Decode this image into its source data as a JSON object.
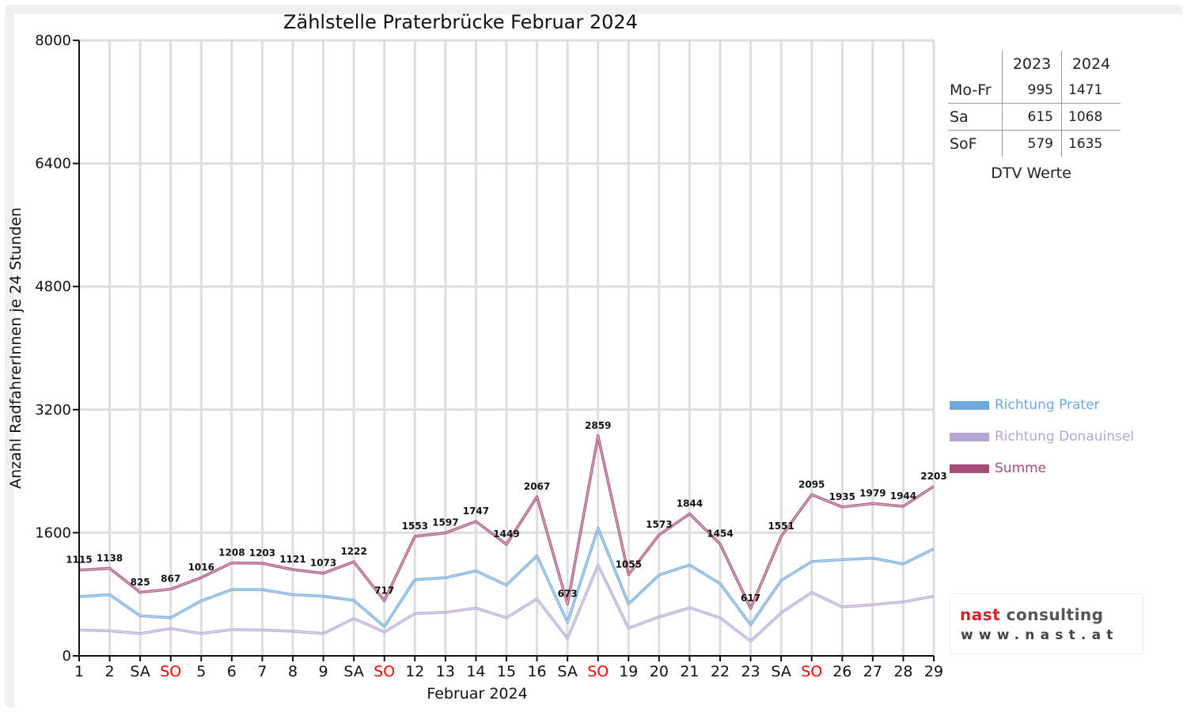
{
  "chart_data": {
    "type": "line",
    "title": "Zählstelle Praterbrücke Februar 2024",
    "xlabel": "Februar 2024",
    "ylabel": "Anzahl RadfahrerInnen je 24 Stunden",
    "ylim": [
      0,
      8000
    ],
    "yticks": [
      "0",
      "1600",
      "3200",
      "4800",
      "6400",
      "8000"
    ],
    "grid": true,
    "legend_position": "right",
    "categories": [
      "1",
      "2",
      "SA",
      "SO",
      "5",
      "6",
      "7",
      "8",
      "9",
      "SA",
      "SO",
      "12",
      "13",
      "14",
      "15",
      "16",
      "SA",
      "SO",
      "19",
      "20",
      "21",
      "22",
      "23",
      "SA",
      "SO",
      "26",
      "27",
      "28",
      "29"
    ],
    "sunday_color": "#ff0000",
    "series": [
      {
        "name": "Richtung Prater",
        "color": "#6fa8dc",
        "values": [
          770,
          795,
          520,
          495,
          715,
          860,
          860,
          795,
          775,
          720,
          380,
          990,
          1015,
          1105,
          920,
          1300,
          435,
          1660,
          675,
          1050,
          1180,
          940,
          405,
          980,
          1225,
          1250,
          1270,
          1195,
          1390
        ]
      },
      {
        "name": "Richtung Donauinsel",
        "color": "#b4a7d6",
        "values": [
          335,
          325,
          290,
          355,
          290,
          340,
          335,
          320,
          290,
          485,
          310,
          550,
          565,
          620,
          495,
          740,
          225,
          1180,
          360,
          505,
          625,
          495,
          190,
          560,
          825,
          635,
          665,
          700,
          775
        ]
      },
      {
        "name": "Summe",
        "color": "#a64d79",
        "values": [
          1115,
          1138,
          825,
          867,
          1016,
          1208,
          1203,
          1121,
          1073,
          1222,
          717,
          1553,
          1597,
          1747,
          1449,
          2067,
          673,
          2859,
          1055,
          1573,
          1844,
          1454,
          617,
          1551,
          2095,
          1935,
          1979,
          1944,
          2203
        ],
        "labels": [
          "1115",
          "1138",
          "825",
          "867",
          "1016",
          "1208",
          "1203",
          "1121",
          "1073",
          "1222",
          "717",
          "1553",
          "1597",
          "1747",
          "1449",
          "2067",
          "673",
          "2859",
          "1055",
          "1573",
          "1844",
          "1454",
          "617",
          "1551",
          "2095",
          "1935",
          "1979",
          "1944",
          "2203"
        ]
      }
    ]
  },
  "dtv_table": {
    "header": [
      "",
      "2023",
      "2024"
    ],
    "rows": [
      {
        "label": "Mo-Fr",
        "v2023": "995",
        "v2024": "1471"
      },
      {
        "label": "Sa",
        "v2023": "615",
        "v2024": "1068"
      },
      {
        "label": "SoF",
        "v2023": "579",
        "v2024": "1635"
      }
    ],
    "caption": "DTV Werte"
  },
  "logo": {
    "name_part1": "nast",
    "name_part2": "consulting",
    "url": "www.nast.at"
  }
}
